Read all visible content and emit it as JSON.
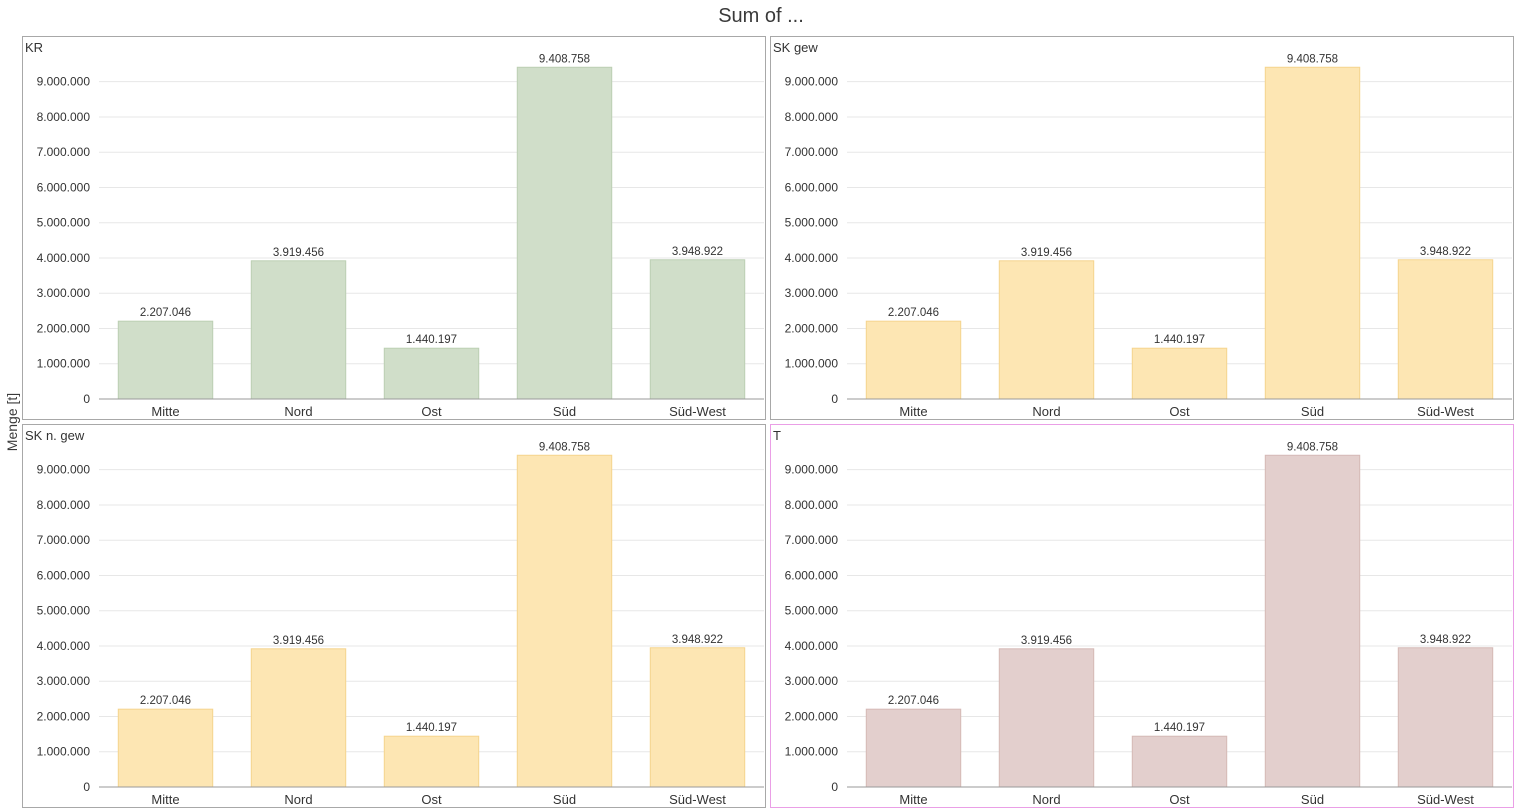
{
  "title": "Sum of ...",
  "y_axis_label": "Menge [t]",
  "chart_data": [
    {
      "type": "bar",
      "title": "KR",
      "categories": [
        "Mitte",
        "Nord",
        "Ost",
        "Süd",
        "Süd-West"
      ],
      "values": [
        2207046,
        3919456,
        1440197,
        9408758,
        3948922
      ],
      "value_labels": [
        "2.207.046",
        "3.919.456",
        "1.440.197",
        "9.408.758",
        "3.948.922"
      ],
      "ylim": [
        0,
        9700000
      ],
      "yticks": [
        0,
        1000000,
        2000000,
        3000000,
        4000000,
        5000000,
        6000000,
        7000000,
        8000000,
        9000000
      ],
      "ytick_labels": [
        "0",
        "1.000.000",
        "2.000.000",
        "3.000.000",
        "4.000.000",
        "5.000.000",
        "6.000.000",
        "7.000.000",
        "8.000.000",
        "9.000.000"
      ],
      "grid": true,
      "color": "#d0dec9",
      "bar_border_color": "#bccfb3",
      "selected": false
    },
    {
      "type": "bar",
      "title": "SK gew",
      "categories": [
        "Mitte",
        "Nord",
        "Ost",
        "Süd",
        "Süd-West"
      ],
      "values": [
        2207046,
        3919456,
        1440197,
        9408758,
        3948922
      ],
      "value_labels": [
        "2.207.046",
        "3.919.456",
        "1.440.197",
        "9.408.758",
        "3.948.922"
      ],
      "ylim": [
        0,
        9700000
      ],
      "yticks": [
        0,
        1000000,
        2000000,
        3000000,
        4000000,
        5000000,
        6000000,
        7000000,
        8000000,
        9000000
      ],
      "ytick_labels": [
        "0",
        "1.000.000",
        "2.000.000",
        "3.000.000",
        "4.000.000",
        "5.000.000",
        "6.000.000",
        "7.000.000",
        "8.000.000",
        "9.000.000"
      ],
      "grid": true,
      "color": "#fde6b3",
      "bar_border_color": "#f5d48e",
      "selected": false
    },
    {
      "type": "bar",
      "title": "SK n. gew",
      "categories": [
        "Mitte",
        "Nord",
        "Ost",
        "Süd",
        "Süd-West"
      ],
      "values": [
        2207046,
        3919456,
        1440197,
        9408758,
        3948922
      ],
      "value_labels": [
        "2.207.046",
        "3.919.456",
        "1.440.197",
        "9.408.758",
        "3.948.922"
      ],
      "ylim": [
        0,
        9700000
      ],
      "yticks": [
        0,
        1000000,
        2000000,
        3000000,
        4000000,
        5000000,
        6000000,
        7000000,
        8000000,
        9000000
      ],
      "ytick_labels": [
        "0",
        "1.000.000",
        "2.000.000",
        "3.000.000",
        "4.000.000",
        "5.000.000",
        "6.000.000",
        "7.000.000",
        "8.000.000",
        "9.000.000"
      ],
      "grid": true,
      "color": "#fde6b3",
      "bar_border_color": "#f5d48e",
      "selected": false
    },
    {
      "type": "bar",
      "title": "T",
      "categories": [
        "Mitte",
        "Nord",
        "Ost",
        "Süd",
        "Süd-West"
      ],
      "values": [
        2207046,
        3919456,
        1440197,
        9408758,
        3948922
      ],
      "value_labels": [
        "2.207.046",
        "3.919.456",
        "1.440.197",
        "9.408.758",
        "3.948.922"
      ],
      "ylim": [
        0,
        9700000
      ],
      "yticks": [
        0,
        1000000,
        2000000,
        3000000,
        4000000,
        5000000,
        6000000,
        7000000,
        8000000,
        9000000
      ],
      "ytick_labels": [
        "0",
        "1.000.000",
        "2.000.000",
        "3.000.000",
        "4.000.000",
        "5.000.000",
        "6.000.000",
        "7.000.000",
        "8.000.000",
        "9.000.000"
      ],
      "grid": true,
      "color": "#e3cfcd",
      "bar_border_color": "#d5b9b6",
      "selected": true
    }
  ]
}
